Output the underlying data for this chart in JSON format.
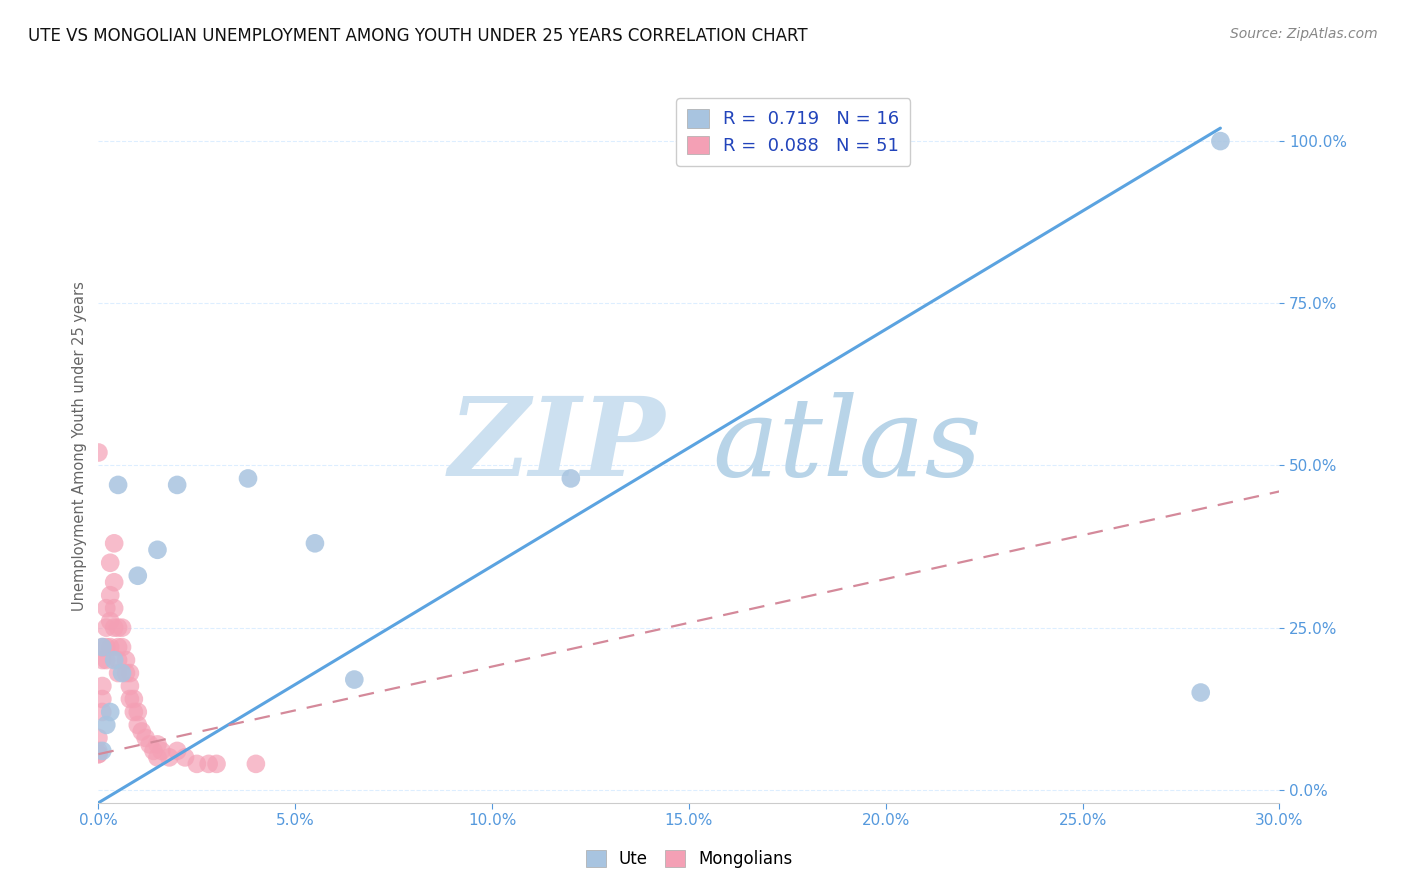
{
  "title": "UTE VS MONGOLIAN UNEMPLOYMENT AMONG YOUTH UNDER 25 YEARS CORRELATION CHART",
  "source": "Source: ZipAtlas.com",
  "ylabel_label": "Unemployment Among Youth under 25 years",
  "xlim": [
    0.0,
    0.3
  ],
  "ylim": [
    -0.02,
    1.08
  ],
  "plot_ylim": [
    0.0,
    1.05
  ],
  "ute_color": "#a8c4e0",
  "mongolian_color": "#f4a0b5",
  "ute_line_color": "#5ba3e0",
  "mongolian_line_color": "#d4899a",
  "tick_color": "#5599dd",
  "grid_color": "#ddeeff",
  "legend_R_ute": "0.719",
  "legend_N_ute": "16",
  "legend_R_mongolian": "0.088",
  "legend_N_mongolian": "51",
  "ute_trend_x0": 0.0,
  "ute_trend_y0": -0.02,
  "ute_trend_x1": 0.285,
  "ute_trend_y1": 1.02,
  "mong_trend_x0": 0.0,
  "mong_trend_y0": 0.055,
  "mong_trend_x1": 0.3,
  "mong_trend_y1": 0.46,
  "ute_x": [
    0.001,
    0.001,
    0.002,
    0.003,
    0.004,
    0.005,
    0.006,
    0.01,
    0.015,
    0.02,
    0.038,
    0.055,
    0.065,
    0.12,
    0.28,
    0.285
  ],
  "ute_y": [
    0.06,
    0.22,
    0.1,
    0.12,
    0.2,
    0.47,
    0.18,
    0.33,
    0.37,
    0.47,
    0.48,
    0.38,
    0.17,
    0.48,
    0.15,
    1.0
  ],
  "mong_x": [
    0.0,
    0.0,
    0.0,
    0.0,
    0.0,
    0.001,
    0.001,
    0.001,
    0.001,
    0.001,
    0.002,
    0.002,
    0.002,
    0.002,
    0.003,
    0.003,
    0.003,
    0.003,
    0.004,
    0.004,
    0.004,
    0.004,
    0.005,
    0.005,
    0.005,
    0.005,
    0.006,
    0.006,
    0.007,
    0.007,
    0.008,
    0.008,
    0.008,
    0.009,
    0.009,
    0.01,
    0.01,
    0.011,
    0.012,
    0.013,
    0.014,
    0.015,
    0.015,
    0.016,
    0.018,
    0.02,
    0.022,
    0.025,
    0.028,
    0.03,
    0.04
  ],
  "mong_y": [
    0.055,
    0.055,
    0.06,
    0.08,
    0.52,
    0.12,
    0.14,
    0.16,
    0.2,
    0.22,
    0.2,
    0.22,
    0.25,
    0.28,
    0.22,
    0.26,
    0.3,
    0.35,
    0.25,
    0.28,
    0.32,
    0.38,
    0.2,
    0.22,
    0.25,
    0.18,
    0.22,
    0.25,
    0.18,
    0.2,
    0.14,
    0.16,
    0.18,
    0.14,
    0.12,
    0.1,
    0.12,
    0.09,
    0.08,
    0.07,
    0.06,
    0.05,
    0.07,
    0.06,
    0.05,
    0.06,
    0.05,
    0.04,
    0.04,
    0.04,
    0.04
  ]
}
